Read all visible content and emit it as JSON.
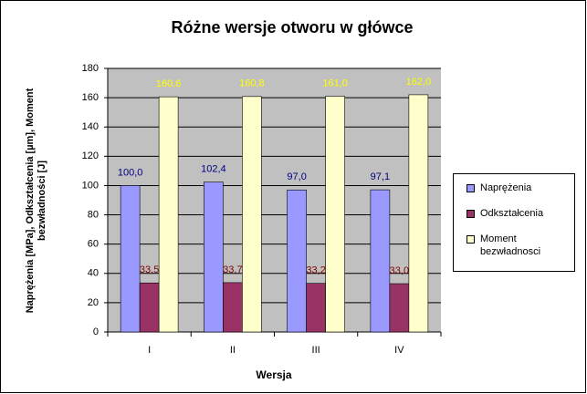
{
  "chart_data": {
    "type": "bar",
    "title": "Różne wersje otworu w główce",
    "x_label": "Wersja",
    "y_label": "Naprężenia [MPa], Odkształcenia [µm], Moment bezwładności [J]",
    "categories": [
      "I",
      "II",
      "III",
      "IV"
    ],
    "series": [
      {
        "name": "Naprężenia",
        "color": "#9999ff",
        "label_color": "#000080",
        "values": [
          100.0,
          102.4,
          97.0,
          97.1
        ],
        "value_labels": [
          "100,0",
          "102,4",
          "97,0",
          "97,1"
        ]
      },
      {
        "name": "Odkształcenia",
        "color": "#993366",
        "label_color": "#800000",
        "values": [
          33.5,
          33.7,
          33.2,
          33.0
        ],
        "value_labels": [
          "33,5",
          "33,7",
          "33,2",
          "33,0"
        ]
      },
      {
        "name": "Moment bezwładnosci",
        "color": "#ffffcc",
        "label_color": "#ffff00",
        "values": [
          160.6,
          160.8,
          161.0,
          162.0
        ],
        "value_labels": [
          "160,6",
          "160,8",
          "161,0",
          "162,0"
        ]
      }
    ],
    "ylim": [
      0,
      180
    ],
    "yticks": [
      0,
      20,
      40,
      60,
      80,
      100,
      120,
      140,
      160,
      180
    ],
    "grid": true,
    "legend": "right"
  }
}
